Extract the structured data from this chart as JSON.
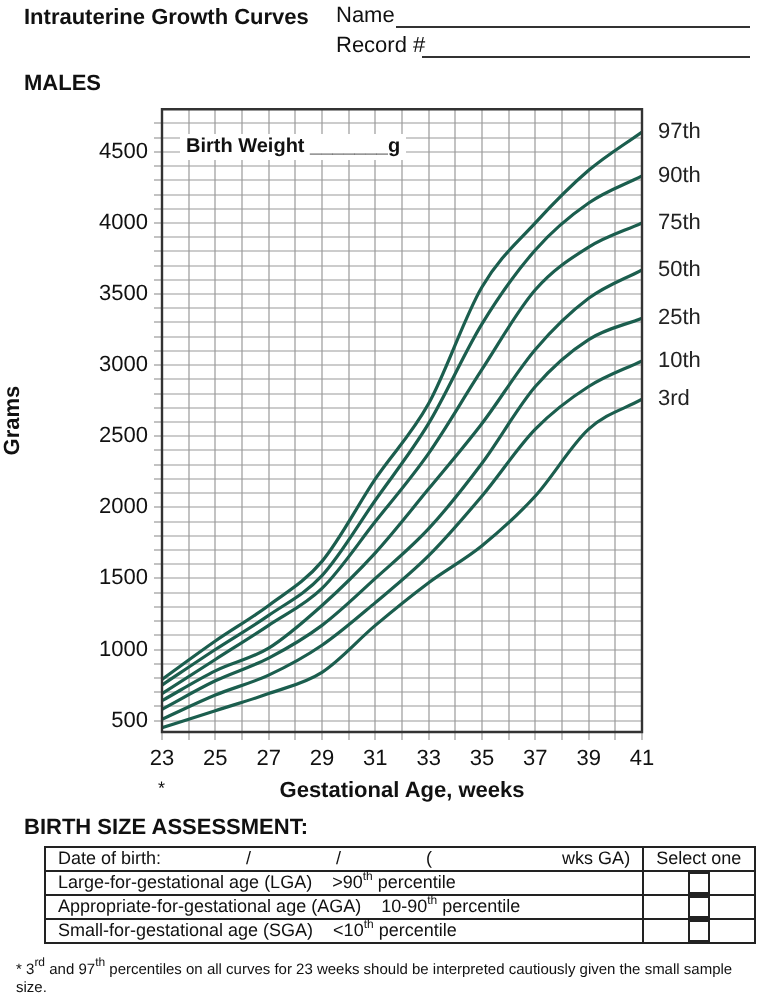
{
  "chart_data": {
    "type": "line",
    "title": "Intrauterine Growth Curves",
    "subtitle": "MALES",
    "xlabel": "Gestational Age, weeks",
    "ylabel": "Grams",
    "x": [
      23,
      25,
      27,
      29,
      31,
      33,
      35,
      37,
      39,
      41
    ],
    "series": [
      {
        "name": "97th",
        "color": "#1b5e4e",
        "values": [
          790,
          1060,
          1310,
          1620,
          2200,
          2730,
          3550,
          4000,
          4370,
          4640
        ]
      },
      {
        "name": "90th",
        "color": "#1b5e4e",
        "values": [
          750,
          1000,
          1240,
          1520,
          2050,
          2590,
          3290,
          3810,
          4140,
          4330
        ]
      },
      {
        "name": "75th",
        "color": "#1b5e4e",
        "values": [
          690,
          930,
          1170,
          1430,
          1900,
          2380,
          2970,
          3530,
          3830,
          4000
        ]
      },
      {
        "name": "50th",
        "color": "#1b5e4e",
        "values": [
          640,
          850,
          1010,
          1310,
          1680,
          2130,
          2590,
          3110,
          3470,
          3670
        ]
      },
      {
        "name": "25th",
        "color": "#1b5e4e",
        "values": [
          580,
          780,
          940,
          1170,
          1500,
          1850,
          2310,
          2850,
          3180,
          3330
        ]
      },
      {
        "name": "10th",
        "color": "#1b5e4e",
        "values": [
          510,
          680,
          820,
          1030,
          1330,
          1660,
          2080,
          2550,
          2850,
          3030
        ]
      },
      {
        "name": "3rd",
        "color": "#1b5e4e",
        "values": [
          450,
          570,
          690,
          840,
          1170,
          1470,
          1730,
          2080,
          2550,
          2760
        ]
      }
    ],
    "xlim": [
      23,
      41
    ],
    "xticks": [
      23,
      {
        "value": 24,
        "label": null
      },
      25,
      {
        "value": 26,
        "label": null
      },
      27,
      {
        "value": 28,
        "label": null
      },
      29,
      {
        "value": 30,
        "label": null
      },
      31,
      {
        "value": 32,
        "label": null
      },
      33,
      {
        "value": 34,
        "label": null
      },
      35,
      {
        "value": 36,
        "label": null
      },
      37,
      {
        "value": 38,
        "label": null
      },
      39,
      {
        "value": 40,
        "label": null
      },
      41
    ],
    "ylim": [
      420,
      4800
    ],
    "yticks": [
      500,
      {
        "value": 600,
        "label": null
      },
      {
        "value": 700,
        "label": null
      },
      {
        "value": 800,
        "label": null
      },
      {
        "value": 900,
        "label": null
      },
      1000,
      {
        "value": 1100,
        "label": null
      },
      {
        "value": 1200,
        "label": null
      },
      {
        "value": 1300,
        "label": null
      },
      {
        "value": 1400,
        "label": null
      },
      1500,
      {
        "value": 1600,
        "label": null
      },
      {
        "value": 1700,
        "label": null
      },
      {
        "value": 1800,
        "label": null
      },
      {
        "value": 1900,
        "label": null
      },
      2000,
      {
        "value": 2100,
        "label": null
      },
      {
        "value": 2200,
        "label": null
      },
      {
        "value": 2300,
        "label": null
      },
      {
        "value": 2400,
        "label": null
      },
      2500,
      {
        "value": 2600,
        "label": null
      },
      {
        "value": 2700,
        "label": null
      },
      {
        "value": 2800,
        "label": null
      },
      {
        "value": 2900,
        "label": null
      },
      3000,
      {
        "value": 3100,
        "label": null
      },
      {
        "value": 3200,
        "label": null
      },
      {
        "value": 3300,
        "label": null
      },
      {
        "value": 3400,
        "label": null
      },
      3500,
      {
        "value": 3600,
        "label": null
      },
      {
        "value": 3700,
        "label": null
      },
      {
        "value": 3800,
        "label": null
      },
      {
        "value": 3900,
        "label": null
      },
      4000,
      {
        "value": 4100,
        "label": null
      },
      {
        "value": 4200,
        "label": null
      },
      {
        "value": 4300,
        "label": null
      },
      {
        "value": 4400,
        "label": null
      },
      4500,
      {
        "value": 4600,
        "label": null
      },
      {
        "value": 4700,
        "label": null
      }
    ],
    "grid": true,
    "legend": false,
    "marker": "none",
    "line_style": "solid",
    "annotations": [
      "Name",
      "Record #",
      "Birth Weight _______g",
      "*",
      "BIRTH SIZE ASSESSMENT:",
      "Date of birth:                 /                 /                 (                          wks GA)",
      "Select one",
      "Large-for-gestational age (LGA)    >90$^{th}$ percentile",
      "Appropriate-for-gestational age (AGA)    10-90$^{th}$ percentile",
      "Small-for-gestational age (SGA)    <10$^{th}$ percentile",
      "* 3$^{rd}$ and 97$^{th}$ percentiles on all curves for 23 weeks should be interpreted cautiously given the small sample size."
    ]
  }
}
